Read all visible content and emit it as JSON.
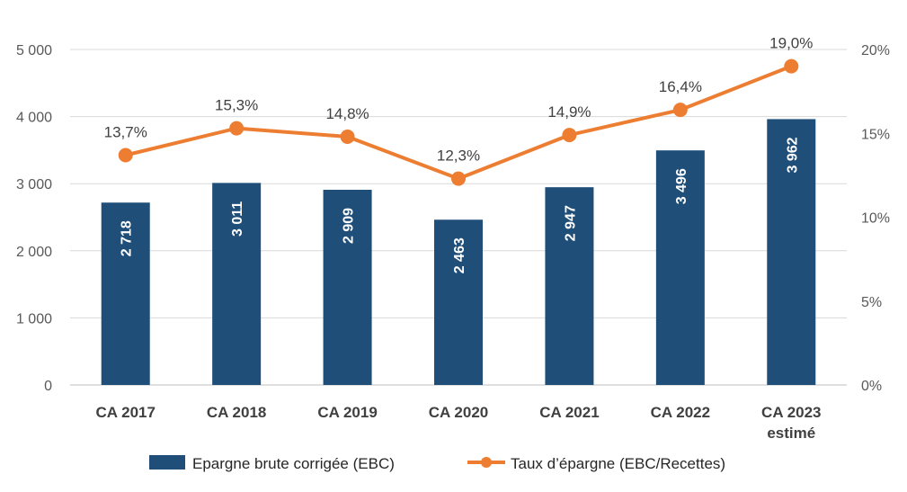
{
  "chart_data": {
    "type": "bar+line",
    "categories": [
      [
        "CA 2017"
      ],
      [
        "CA 2018"
      ],
      [
        "CA 2019"
      ],
      [
        "CA 2020"
      ],
      [
        "CA 2021"
      ],
      [
        "CA 2022"
      ],
      [
        "CA 2023",
        "estimé"
      ]
    ],
    "series": [
      {
        "name": "Epargne brute corrigée (EBC)",
        "type": "bar",
        "axis": "left",
        "color": "#1f4e79",
        "values": [
          2718,
          3011,
          2909,
          2463,
          2947,
          3496,
          3962
        ],
        "labels": [
          "2 718",
          "3 011",
          "2 909",
          "2 463",
          "2 947",
          "3 496",
          "3 962"
        ]
      },
      {
        "name": "Taux d’épargne (EBC/Recettes)",
        "type": "line",
        "axis": "right",
        "color": "#ed7d31",
        "values": [
          13.7,
          15.3,
          14.8,
          12.3,
          14.9,
          16.4,
          19.0
        ],
        "labels": [
          "13,7%",
          "15,3%",
          "14,8%",
          "12,3%",
          "14,9%",
          "16,4%",
          "19,0%"
        ]
      }
    ],
    "y_left": {
      "range": [
        0,
        5000
      ],
      "ticks": [
        0,
        1000,
        2000,
        3000,
        4000,
        5000
      ],
      "tick_labels": [
        "0",
        "1 000",
        "2 000",
        "3 000",
        "4 000",
        "5 000"
      ]
    },
    "y_right": {
      "range": [
        0,
        20
      ],
      "ticks": [
        0,
        5,
        10,
        15,
        20
      ],
      "tick_labels": [
        "0%",
        "5%",
        "10%",
        "15%",
        "20%"
      ]
    },
    "grid": true,
    "legend": "bottom"
  }
}
